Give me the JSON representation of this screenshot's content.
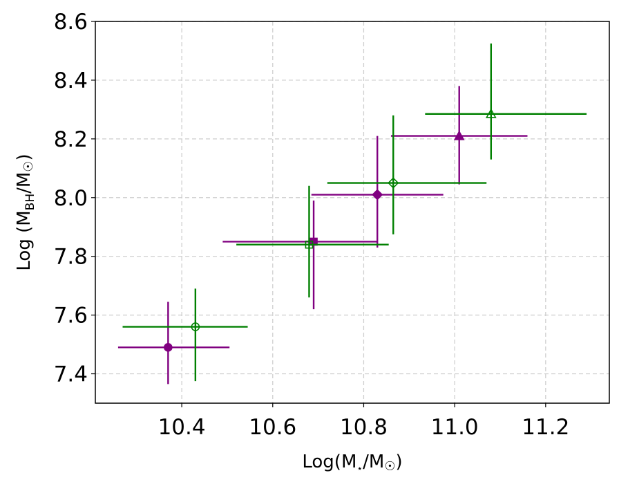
{
  "chart_data": {
    "type": "scatter",
    "title": "",
    "xlabel": {
      "main": "Log(M",
      "sub": "⋆",
      "mid": "/M",
      "sub2": "☉",
      "end": ")"
    },
    "ylabel": {
      "main": "Log (M",
      "sub": "BH",
      "mid": "/M",
      "sub2": "☉",
      "end": ")"
    },
    "xlim": [
      10.21,
      11.34
    ],
    "ylim": [
      7.3,
      8.6
    ],
    "xticks": [
      10.4,
      10.6,
      10.8,
      11.0,
      11.2
    ],
    "xtick_labels": [
      "10.4",
      "10.6",
      "10.8",
      "11.0",
      "11.2"
    ],
    "yticks": [
      7.4,
      7.6,
      7.8,
      8.0,
      8.2,
      8.4,
      8.6
    ],
    "ytick_labels": [
      "7.4",
      "7.6",
      "7.8",
      "8.0",
      "8.2",
      "8.4",
      "8.6"
    ],
    "grid": true,
    "series": [
      {
        "color": "#800080",
        "filled": true,
        "points": [
          {
            "x": 10.37,
            "y": 7.49,
            "xerr": [
              10.26,
              10.505
            ],
            "yerr": [
              7.365,
              7.645
            ],
            "marker": "circle"
          },
          {
            "x": 10.69,
            "y": 7.85,
            "xerr": [
              10.49,
              10.83
            ],
            "yerr": [
              7.62,
              7.99
            ],
            "marker": "square"
          },
          {
            "x": 10.83,
            "y": 8.01,
            "xerr": [
              10.685,
              10.975
            ],
            "yerr": [
              7.83,
              8.21
            ],
            "marker": "diamond"
          },
          {
            "x": 11.01,
            "y": 8.21,
            "xerr": [
              10.86,
              11.16
            ],
            "yerr": [
              8.045,
              8.38
            ],
            "marker": "triangle"
          }
        ]
      },
      {
        "color": "#008000",
        "filled": false,
        "points": [
          {
            "x": 10.43,
            "y": 7.56,
            "xerr": [
              10.27,
              10.545
            ],
            "yerr": [
              7.375,
              7.69
            ],
            "marker": "circle"
          },
          {
            "x": 10.68,
            "y": 7.84,
            "xerr": [
              10.52,
              10.855
            ],
            "yerr": [
              7.66,
              8.04
            ],
            "marker": "square"
          },
          {
            "x": 10.865,
            "y": 8.05,
            "xerr": [
              10.72,
              11.07
            ],
            "yerr": [
              7.875,
              8.28
            ],
            "marker": "diamond"
          },
          {
            "x": 11.08,
            "y": 8.285,
            "xerr": [
              10.935,
              11.29
            ],
            "yerr": [
              8.13,
              8.525
            ],
            "marker": "triangle"
          }
        ]
      }
    ]
  }
}
